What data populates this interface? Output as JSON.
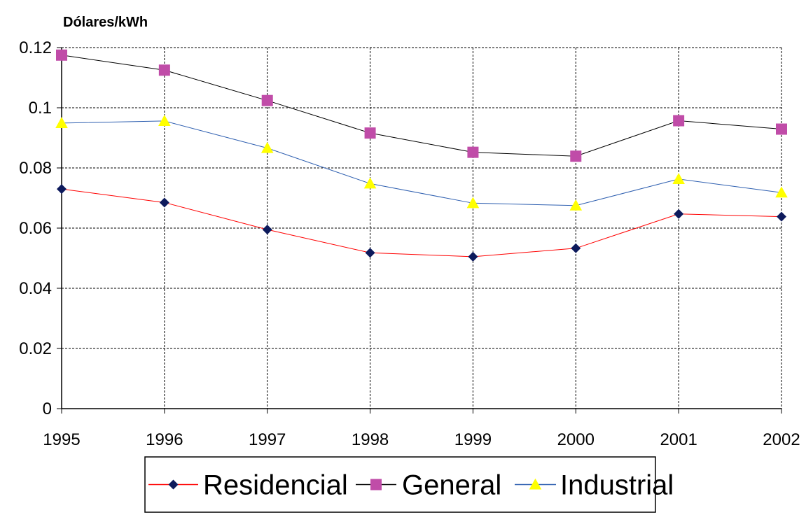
{
  "chart_data": {
    "type": "line",
    "title": "",
    "xlabel": "",
    "ylabel": "Dólares/kWh",
    "x": [
      "1995",
      "1996",
      "1997",
      "1998",
      "1999",
      "2000",
      "2001",
      "2002"
    ],
    "yticks": [
      "0",
      "0.02",
      "0.04",
      "0.06",
      "0.08",
      "0.1",
      "0.12"
    ],
    "ylim": [
      0,
      0.12
    ],
    "grid": true,
    "legend_position": "bottom",
    "series": [
      {
        "name": "Residencial",
        "marker": "diamond",
        "line_color": "#ff0000",
        "marker_color": "#0d1a5c",
        "values": [
          0.073,
          0.0685,
          0.0595,
          0.0518,
          0.0505,
          0.0533,
          0.0647,
          0.0638
        ]
      },
      {
        "name": "General",
        "marker": "square",
        "line_color": "#000000",
        "marker_color": "#c04ca8",
        "values": [
          0.1175,
          0.1125,
          0.1024,
          0.0916,
          0.0852,
          0.0839,
          0.0957,
          0.0929
        ]
      },
      {
        "name": "Industrial",
        "marker": "triangle",
        "line_color": "#2e5fb0",
        "marker_color": "#ffff00",
        "values": [
          0.0949,
          0.0956,
          0.0866,
          0.0748,
          0.0683,
          0.0675,
          0.0763,
          0.0718
        ]
      }
    ]
  }
}
